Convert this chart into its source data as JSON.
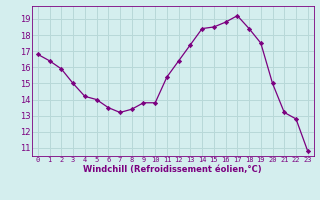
{
  "x": [
    0,
    1,
    2,
    3,
    4,
    5,
    6,
    7,
    8,
    9,
    10,
    11,
    12,
    13,
    14,
    15,
    16,
    17,
    18,
    19,
    20,
    21,
    22,
    23
  ],
  "y": [
    16.8,
    16.4,
    15.9,
    15.0,
    14.2,
    14.0,
    13.5,
    13.2,
    13.4,
    13.8,
    13.8,
    15.4,
    16.4,
    17.4,
    18.4,
    18.5,
    18.8,
    19.2,
    18.4,
    17.5,
    15.0,
    13.2,
    12.8,
    10.8
  ],
  "line_color": "#7b0080",
  "marker": "D",
  "marker_size": 2.2,
  "bg_color": "#d4eeee",
  "grid_color": "#b8d8d8",
  "xlabel": "Windchill (Refroidissement éolien,°C)",
  "xlabel_color": "#7b0080",
  "tick_color": "#7b0080",
  "ylim": [
    10.5,
    19.8
  ],
  "xlim": [
    -0.5,
    23.5
  ],
  "yticks": [
    11,
    12,
    13,
    14,
    15,
    16,
    17,
    18,
    19
  ],
  "xticks": [
    0,
    1,
    2,
    3,
    4,
    5,
    6,
    7,
    8,
    9,
    10,
    11,
    12,
    13,
    14,
    15,
    16,
    17,
    18,
    19,
    20,
    21,
    22,
    23
  ]
}
